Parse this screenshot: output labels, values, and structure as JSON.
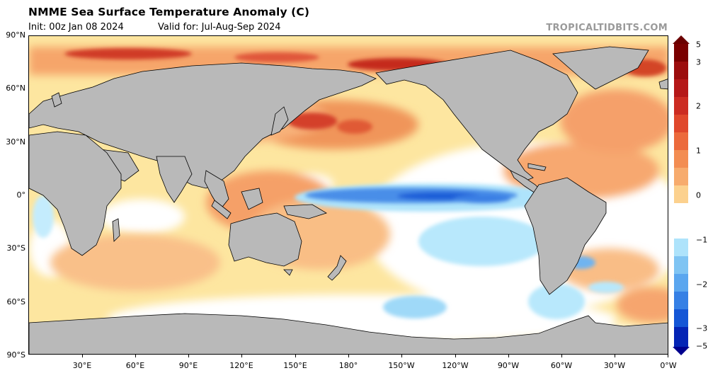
{
  "header": {
    "title": "NMME Sea Surface Temperature Anomaly (C)",
    "init": "Init: 00z Jan 08 2024",
    "valid": "Valid for: Jul-Aug-Sep 2024",
    "brand": "TROPICALTIDBITS.COM"
  },
  "map": {
    "lat_labels": [
      "90°N",
      "60°N",
      "30°N",
      "0°",
      "30°S",
      "60°S",
      "90°S"
    ],
    "lon_labels": [
      "30°E",
      "60°E",
      "90°E",
      "120°E",
      "150°E",
      "180°",
      "150°W",
      "120°W",
      "90°W",
      "60°W",
      "30°W",
      "0°W"
    ]
  },
  "colorbar": {
    "labels": [
      "5",
      "3",
      "2",
      "1",
      "0",
      "−1",
      "−2",
      "−3",
      "−5"
    ],
    "colors": {
      "warm_extreme": "#6b0000",
      "warm_3": "#b01010",
      "warm_2": "#e0502a",
      "warm_1": "#f4a568",
      "warm_low": "#ffe9a0",
      "neutral": "#ffffff",
      "cool_low": "#aee3fb",
      "cool_1": "#5aa6ef",
      "cool_2": "#1456d6",
      "cool_extreme": "#00008e"
    }
  },
  "colors": {
    "land": "#b9b9b9",
    "ocean_base": "#fde8a3",
    "brand_text": "#9a9a9a"
  }
}
